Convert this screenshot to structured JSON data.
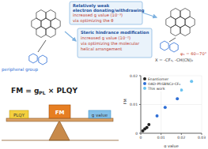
{
  "box_weak": {
    "title": [
      "Relatively weak",
      "electron donating/withdrawing"
    ],
    "body": [
      "increased g value (10⁻³)",
      "via optimizing the θ"
    ]
  },
  "box_steric": {
    "title": [
      "Steric hindrance modification"
    ],
    "body": [
      "increased g value (10⁻²)",
      "via optimizing the molecular",
      "helical arrangement"
    ]
  },
  "labels": {
    "peripheral": "peripheral group",
    "phi": "φ₁ = 60~70°",
    "x_sub": "X = -CF₃, -CH(CN)₂"
  },
  "formula": [
    "FM = g",
    "PL",
    " × PLQY"
  ],
  "seesaw": {
    "center": "FM",
    "left": "PLQY",
    "right": "g value"
  },
  "chart_data": {
    "type": "scatter",
    "xlabel": "g value",
    "ylabel": "FM",
    "xlim": [
      0,
      0.03
    ],
    "xticks": [
      0,
      0.01,
      0.02,
      0.03
    ],
    "ylim": [
      0,
      0.02
    ],
    "yticks": [
      0,
      0.01,
      0.02
    ],
    "series": [
      {
        "name": "Enantiomer",
        "color": "#222222",
        "x": [
          0.001,
          0.002,
          0.003,
          0.004
        ],
        "values": [
          0.0008,
          0.0015,
          0.002,
          0.003
        ]
      },
      {
        "name": "OAD-PhSBNCz-CF₃",
        "color": "#2f6fd6",
        "x": [
          0.008,
          0.012,
          0.018
        ],
        "values": [
          0.006,
          0.009,
          0.012
        ]
      },
      {
        "name": "This work",
        "color": "#6cc3f0",
        "x": [
          0.02,
          0.025
        ],
        "values": [
          0.015,
          0.018
        ]
      }
    ]
  }
}
